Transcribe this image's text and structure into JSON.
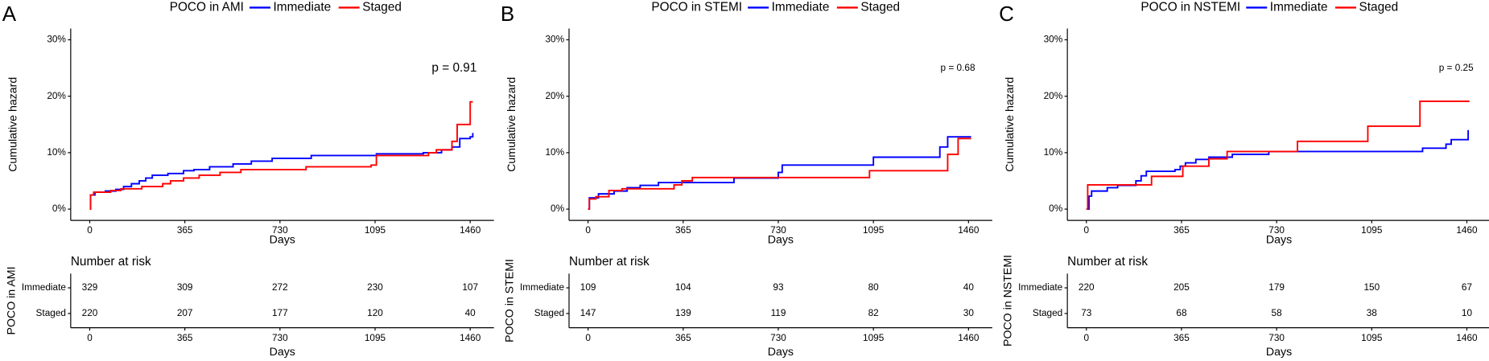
{
  "chart_data": [
    {
      "type": "step",
      "panel_label": "A",
      "legend_title": "POCO in AMI",
      "xlabel": "Days",
      "ylabel": "Cumulative hazard",
      "p_value": "p = 0.91",
      "xlim": [
        -73,
        1551
      ],
      "ylim": [
        -2,
        32
      ],
      "xticks": [
        0,
        365,
        730,
        1095,
        1460
      ],
      "yticks": [
        {
          "value": 0,
          "label": "0%"
        },
        {
          "value": 10,
          "label": "10%"
        },
        {
          "value": 20,
          "label": "20%"
        },
        {
          "value": 30,
          "label": "30%"
        }
      ],
      "series": [
        {
          "name": "Immediate",
          "color": "#0000ff",
          "x": [
            0,
            3,
            20,
            60,
            100,
            130,
            160,
            190,
            215,
            240,
            300,
            360,
            400,
            460,
            550,
            620,
            700,
            850,
            1100,
            1280,
            1350,
            1390,
            1420,
            1460,
            1470
          ],
          "values": [
            0,
            2.5,
            3,
            3.2,
            3.5,
            4,
            4.5,
            5,
            5.5,
            6,
            6.3,
            6.8,
            7,
            7.5,
            8,
            8.5,
            9,
            9.5,
            9.8,
            10,
            10.5,
            11,
            12.5,
            12.8,
            13.5
          ]
        },
        {
          "name": "Staged",
          "color": "#ff0000",
          "x": [
            0,
            3,
            15,
            80,
            120,
            200,
            280,
            310,
            360,
            420,
            500,
            580,
            830,
            1080,
            1100,
            1300,
            1330,
            1390,
            1410,
            1460,
            1470
          ],
          "values": [
            0,
            2.5,
            3,
            3.3,
            3.6,
            4,
            4.5,
            5,
            5.5,
            6,
            6.5,
            7,
            7.5,
            7.8,
            9.5,
            10,
            10.5,
            12,
            15,
            19,
            19
          ]
        }
      ],
      "risk_table": {
        "title": "Number at risk",
        "ylabel": "POCO in AMI",
        "xlabel": "Days",
        "rows": [
          {
            "name": "Immediate",
            "color": "#0000ff",
            "counts": [
              329,
              309,
              272,
              230,
              107
            ]
          },
          {
            "name": "Staged",
            "color": "#ff0000",
            "counts": [
              220,
              207,
              177,
              120,
              40
            ]
          }
        ]
      }
    },
    {
      "type": "step",
      "panel_label": "B",
      "legend_title": "POCO in STEMI",
      "xlabel": "Days",
      "ylabel": "Cumulative hazard",
      "p_value": "p = 0.68",
      "xlim": [
        -73,
        1551
      ],
      "ylim": [
        -2,
        32
      ],
      "xticks": [
        0,
        365,
        730,
        1095,
        1460
      ],
      "yticks": [
        {
          "value": 0,
          "label": "0%"
        },
        {
          "value": 10,
          "label": "10%"
        },
        {
          "value": 20,
          "label": "20%"
        },
        {
          "value": 30,
          "label": "30%"
        }
      ],
      "series": [
        {
          "name": "Immediate",
          "color": "#0000ff",
          "x": [
            0,
            5,
            40,
            100,
            150,
            200,
            270,
            560,
            730,
            745,
            1095,
            1350,
            1380,
            1470
          ],
          "values": [
            0,
            2,
            2.7,
            3.2,
            3.8,
            4.2,
            4.7,
            5.5,
            6.5,
            7.8,
            9.2,
            11,
            12.8,
            12.8
          ]
        },
        {
          "name": "Staged",
          "color": "#ff0000",
          "x": [
            0,
            5,
            30,
            80,
            130,
            330,
            360,
            400,
            1080,
            1360,
            1380,
            1420,
            1470
          ],
          "values": [
            0,
            1.8,
            2.2,
            3.3,
            3.6,
            4.3,
            5,
            5.6,
            6.8,
            6.8,
            9.7,
            12.5,
            12.5
          ]
        }
      ],
      "risk_table": {
        "title": "Number at risk",
        "ylabel": "POCO in STEMI",
        "xlabel": "Days",
        "rows": [
          {
            "name": "Immediate",
            "color": "#0000ff",
            "counts": [
              109,
              104,
              93,
              80,
              40
            ]
          },
          {
            "name": "Staged",
            "color": "#ff0000",
            "counts": [
              147,
              139,
              119,
              82,
              30
            ]
          }
        ]
      }
    },
    {
      "type": "step",
      "panel_label": "C",
      "legend_title": "POCO in NSTEMI",
      "xlabel": "Days",
      "ylabel": "Cumulative hazard",
      "p_value": "p = 0.25",
      "xlim": [
        -73,
        1551
      ],
      "ylim": [
        -2,
        32
      ],
      "xticks": [
        0,
        365,
        730,
        1095,
        1460
      ],
      "yticks": [
        {
          "value": 0,
          "label": "0%"
        },
        {
          "value": 10,
          "label": "10%"
        },
        {
          "value": 20,
          "label": "20%"
        },
        {
          "value": 30,
          "label": "30%"
        }
      ],
      "series": [
        {
          "name": "Immediate",
          "color": "#0000ff",
          "x": [
            0,
            10,
            20,
            80,
            120,
            190,
            210,
            230,
            340,
            360,
            380,
            420,
            470,
            560,
            700,
            1290,
            1380,
            1400,
            1460,
            1465
          ],
          "values": [
            0,
            2.3,
            3.2,
            3.8,
            4.2,
            5,
            5.9,
            6.7,
            7,
            7.6,
            8.2,
            8.8,
            9.2,
            9.7,
            10.2,
            10.8,
            11.5,
            12.3,
            12.3,
            14
          ]
        },
        {
          "name": "Staged",
          "color": "#ff0000",
          "x": [
            0,
            5,
            150,
            250,
            370,
            470,
            540,
            810,
            1080,
            1280,
            1470
          ],
          "values": [
            0,
            4.3,
            4.3,
            5.8,
            7.6,
            8.9,
            10.2,
            12,
            14.7,
            19.1,
            19.1
          ]
        }
      ],
      "risk_table": {
        "title": "Number at risk",
        "ylabel": "POCO in NSTEMI",
        "xlabel": "Days",
        "rows": [
          {
            "name": "Immediate",
            "color": "#0000ff",
            "counts": [
              220,
              205,
              179,
              150,
              67
            ]
          },
          {
            "name": "Staged",
            "color": "#ff0000",
            "counts": [
              73,
              68,
              58,
              38,
              10
            ]
          }
        ]
      }
    }
  ]
}
